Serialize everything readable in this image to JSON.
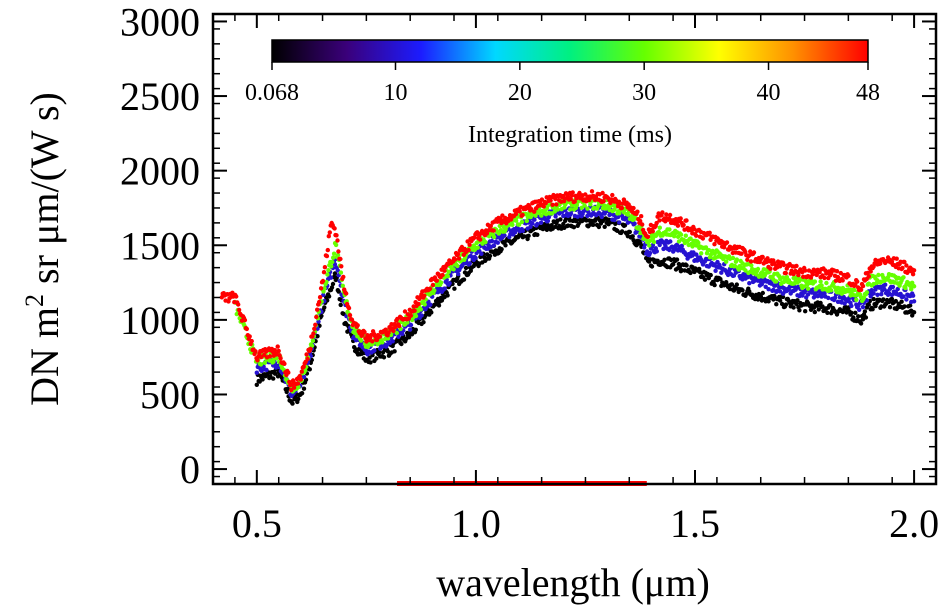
{
  "chart_data": {
    "type": "scatter",
    "title": "",
    "xlabel": "wavelength (μm)",
    "ylabel": "DN m² sr μm/(W s)",
    "xlim": [
      0.4,
      2.05
    ],
    "ylim": [
      -100,
      3050
    ],
    "x_ticks": [
      0.5,
      1.0,
      1.5,
      2.0
    ],
    "x_tick_labels": [
      "0.5",
      "1.0",
      "1.5",
      "2.0"
    ],
    "y_ticks": [
      0,
      500,
      1000,
      1500,
      2000,
      2500,
      3000
    ],
    "y_tick_labels": [
      "0",
      "500",
      "1000",
      "1500",
      "2000",
      "2500",
      "3000"
    ],
    "grid": false,
    "colorbar": {
      "label": "Integration time (ms)",
      "colormap": "rainbow",
      "range": [
        0.068,
        48
      ],
      "tick_values": [
        0.068,
        10,
        20,
        30,
        40,
        48
      ],
      "tick_labels": [
        "0.068",
        "10",
        "20",
        "30",
        "40",
        "48"
      ],
      "colors": [
        "#000000",
        "#3a007a",
        "#1c1cff",
        "#00d8ff",
        "#00f080",
        "#66ff00",
        "#ffff00",
        "#ff9000",
        "#ff0000"
      ]
    },
    "series": [
      {
        "integration_time_ms": 48,
        "x": [
          0.42,
          0.45,
          0.5,
          0.55,
          0.58,
          0.6,
          0.62,
          0.65,
          0.67,
          0.68,
          0.7,
          0.72,
          0.75,
          0.8,
          0.85,
          0.9,
          0.95,
          1.0,
          1.05,
          1.1,
          1.15,
          1.2,
          1.25,
          1.3,
          1.35,
          1.38,
          1.39,
          1.42,
          1.45,
          1.5,
          1.55,
          1.6,
          1.65,
          1.7,
          1.75,
          1.8,
          1.85,
          1.88,
          1.9,
          1.93,
          1.97,
          2.0
        ],
        "y": [
          1150,
          1150,
          750,
          800,
          550,
          620,
          800,
          1250,
          1650,
          1600,
          1200,
          980,
          870,
          930,
          1050,
          1250,
          1400,
          1550,
          1650,
          1720,
          1780,
          1820,
          1830,
          1820,
          1760,
          1650,
          1560,
          1700,
          1680,
          1600,
          1530,
          1460,
          1400,
          1350,
          1320,
          1310,
          1280,
          1210,
          1350,
          1400,
          1370,
          1320
        ]
      },
      {
        "integration_time_ms": 30,
        "x": [
          0.45,
          0.5,
          0.55,
          0.58,
          0.6,
          0.62,
          0.65,
          0.68,
          0.7,
          0.72,
          0.75,
          0.8,
          0.85,
          0.9,
          0.95,
          1.0,
          1.05,
          1.1,
          1.15,
          1.2,
          1.25,
          1.3,
          1.35,
          1.38,
          1.39,
          1.42,
          1.45,
          1.5,
          1.55,
          1.6,
          1.65,
          1.7,
          1.75,
          1.8,
          1.85,
          1.88,
          1.9,
          1.93,
          1.97,
          2.0
        ],
        "y": [
          1100,
          720,
          760,
          530,
          600,
          770,
          1180,
          1500,
          1150,
          950,
          840,
          900,
          1010,
          1200,
          1360,
          1500,
          1600,
          1670,
          1730,
          1770,
          1780,
          1770,
          1710,
          1600,
          1500,
          1600,
          1580,
          1500,
          1430,
          1370,
          1320,
          1270,
          1240,
          1230,
          1200,
          1140,
          1260,
          1290,
          1260,
          1220
        ]
      },
      {
        "integration_time_ms": 10,
        "x": [
          0.5,
          0.55,
          0.58,
          0.6,
          0.62,
          0.65,
          0.68,
          0.7,
          0.72,
          0.75,
          0.8,
          0.85,
          0.9,
          0.95,
          1.0,
          1.05,
          1.1,
          1.15,
          1.2,
          1.25,
          1.3,
          1.35,
          1.38,
          1.39,
          1.42,
          1.45,
          1.5,
          1.55,
          1.6,
          1.65,
          1.7,
          1.75,
          1.8,
          1.85,
          1.88,
          1.9,
          1.93,
          1.97,
          2.0
        ],
        "y": [
          680,
          720,
          500,
          570,
          740,
          1120,
          1420,
          1100,
          910,
          800,
          860,
          970,
          1150,
          1310,
          1450,
          1550,
          1620,
          1680,
          1720,
          1730,
          1720,
          1660,
          1560,
          1460,
          1500,
          1490,
          1420,
          1360,
          1300,
          1250,
          1210,
          1180,
          1170,
          1140,
          1090,
          1190,
          1210,
          1180,
          1140
        ]
      },
      {
        "integration_time_ms": 0.068,
        "x": [
          0.5,
          0.55,
          0.58,
          0.6,
          0.62,
          0.65,
          0.68,
          0.7,
          0.72,
          0.75,
          0.8,
          0.85,
          0.9,
          0.95,
          1.0,
          1.05,
          1.1,
          1.15,
          1.2,
          1.25,
          1.3,
          1.35,
          1.38,
          1.39,
          1.42,
          1.45,
          1.5,
          1.55,
          1.6,
          1.65,
          1.7,
          1.75,
          1.8,
          1.85,
          1.88,
          1.9,
          1.93,
          1.97,
          2.0
        ],
        "y": [
          600,
          650,
          450,
          500,
          680,
          1050,
          1300,
          1000,
          840,
          740,
          790,
          900,
          1080,
          1240,
          1380,
          1480,
          1550,
          1610,
          1650,
          1660,
          1650,
          1590,
          1480,
          1380,
          1400,
          1380,
          1320,
          1260,
          1200,
          1160,
          1120,
          1090,
          1080,
          1050,
          1000,
          1100,
          1120,
          1090,
          1050
        ]
      }
    ],
    "highlight_band": {
      "x_range": [
        0.82,
        1.39
      ],
      "color": "#ff0000"
    }
  }
}
